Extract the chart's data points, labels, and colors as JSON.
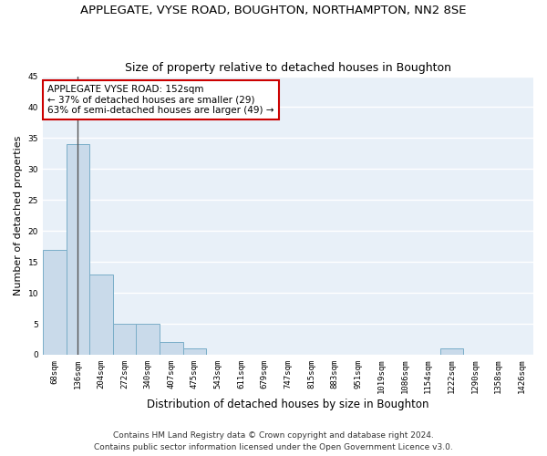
{
  "title": "APPLEGATE, VYSE ROAD, BOUGHTON, NORTHAMPTON, NN2 8SE",
  "subtitle": "Size of property relative to detached houses in Boughton",
  "xlabel": "Distribution of detached houses by size in Boughton",
  "ylabel": "Number of detached properties",
  "bar_values": [
    17,
    34,
    13,
    5,
    5,
    2,
    1,
    0,
    0,
    0,
    0,
    0,
    0,
    0,
    0,
    0,
    0,
    1,
    0,
    0,
    0
  ],
  "bar_labels": [
    "68sqm",
    "136sqm",
    "204sqm",
    "272sqm",
    "340sqm",
    "407sqm",
    "475sqm",
    "543sqm",
    "611sqm",
    "679sqm",
    "747sqm",
    "815sqm",
    "883sqm",
    "951sqm",
    "1019sqm",
    "1086sqm",
    "1154sqm",
    "1222sqm",
    "1290sqm",
    "1358sqm",
    "1426sqm"
  ],
  "bar_color": "#c9daea",
  "bar_edge_color": "#7aaec8",
  "ylim": [
    0,
    45
  ],
  "yticks": [
    0,
    5,
    10,
    15,
    20,
    25,
    30,
    35,
    40,
    45
  ],
  "vline_x": 1.0,
  "vline_color": "#555555",
  "annotation_text": "APPLEGATE VYSE ROAD: 152sqm\n← 37% of detached houses are smaller (29)\n63% of semi-detached houses are larger (49) →",
  "annotation_box_color": "#ffffff",
  "annotation_box_edge_color": "#cc0000",
  "footer_line1": "Contains HM Land Registry data © Crown copyright and database right 2024.",
  "footer_line2": "Contains public sector information licensed under the Open Government Licence v3.0.",
  "bg_color": "#e8f0f8",
  "grid_color": "#ffffff",
  "title_fontsize": 9.5,
  "subtitle_fontsize": 9,
  "xlabel_fontsize": 8.5,
  "ylabel_fontsize": 8,
  "tick_fontsize": 6.5,
  "annotation_fontsize": 7.5,
  "footer_fontsize": 6.5
}
